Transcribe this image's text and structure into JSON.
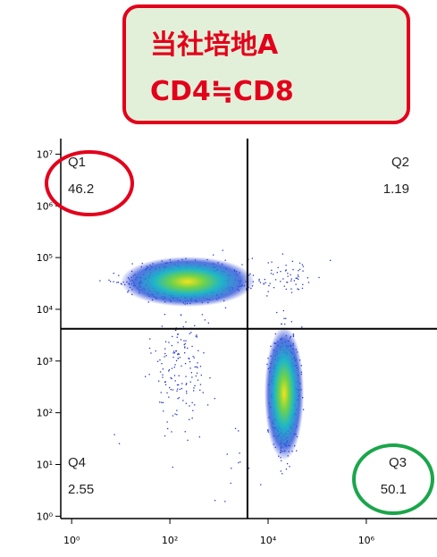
{
  "chart_data": {
    "type": "quadrant-scatter",
    "title_lines": [
      "当社培地A",
      "CD4≒CD8"
    ],
    "xscale": "log",
    "yscale": "log",
    "xlim": [
      0.6,
      27500000
    ],
    "ylim": [
      0.9,
      20000000
    ],
    "xticks": [
      {
        "value": 1,
        "label": "10⁰"
      },
      {
        "value": 100,
        "label": "10²"
      },
      {
        "value": 10000,
        "label": "10⁴"
      },
      {
        "value": 1000000,
        "label": "10⁶"
      }
    ],
    "yticks": [
      {
        "value": 1,
        "label": "10⁰"
      },
      {
        "value": 10,
        "label": "10¹"
      },
      {
        "value": 100,
        "label": "10²"
      },
      {
        "value": 1000,
        "label": "10³"
      },
      {
        "value": 10000,
        "label": "10⁴"
      },
      {
        "value": 100000,
        "label": "10⁵"
      },
      {
        "value": 1000000,
        "label": "10⁶"
      },
      {
        "value": 10000000,
        "label": "10⁷"
      }
    ],
    "gate": {
      "x": 3800,
      "y": 4200
    },
    "quadrants": [
      {
        "name": "Q1",
        "value": 46.2,
        "position": "top-left"
      },
      {
        "name": "Q2",
        "value": 1.19,
        "position": "top-right"
      },
      {
        "name": "Q3",
        "value": 50.1,
        "position": "bottom-right"
      },
      {
        "name": "Q4",
        "value": 2.55,
        "position": "bottom-left"
      }
    ]
  }
}
